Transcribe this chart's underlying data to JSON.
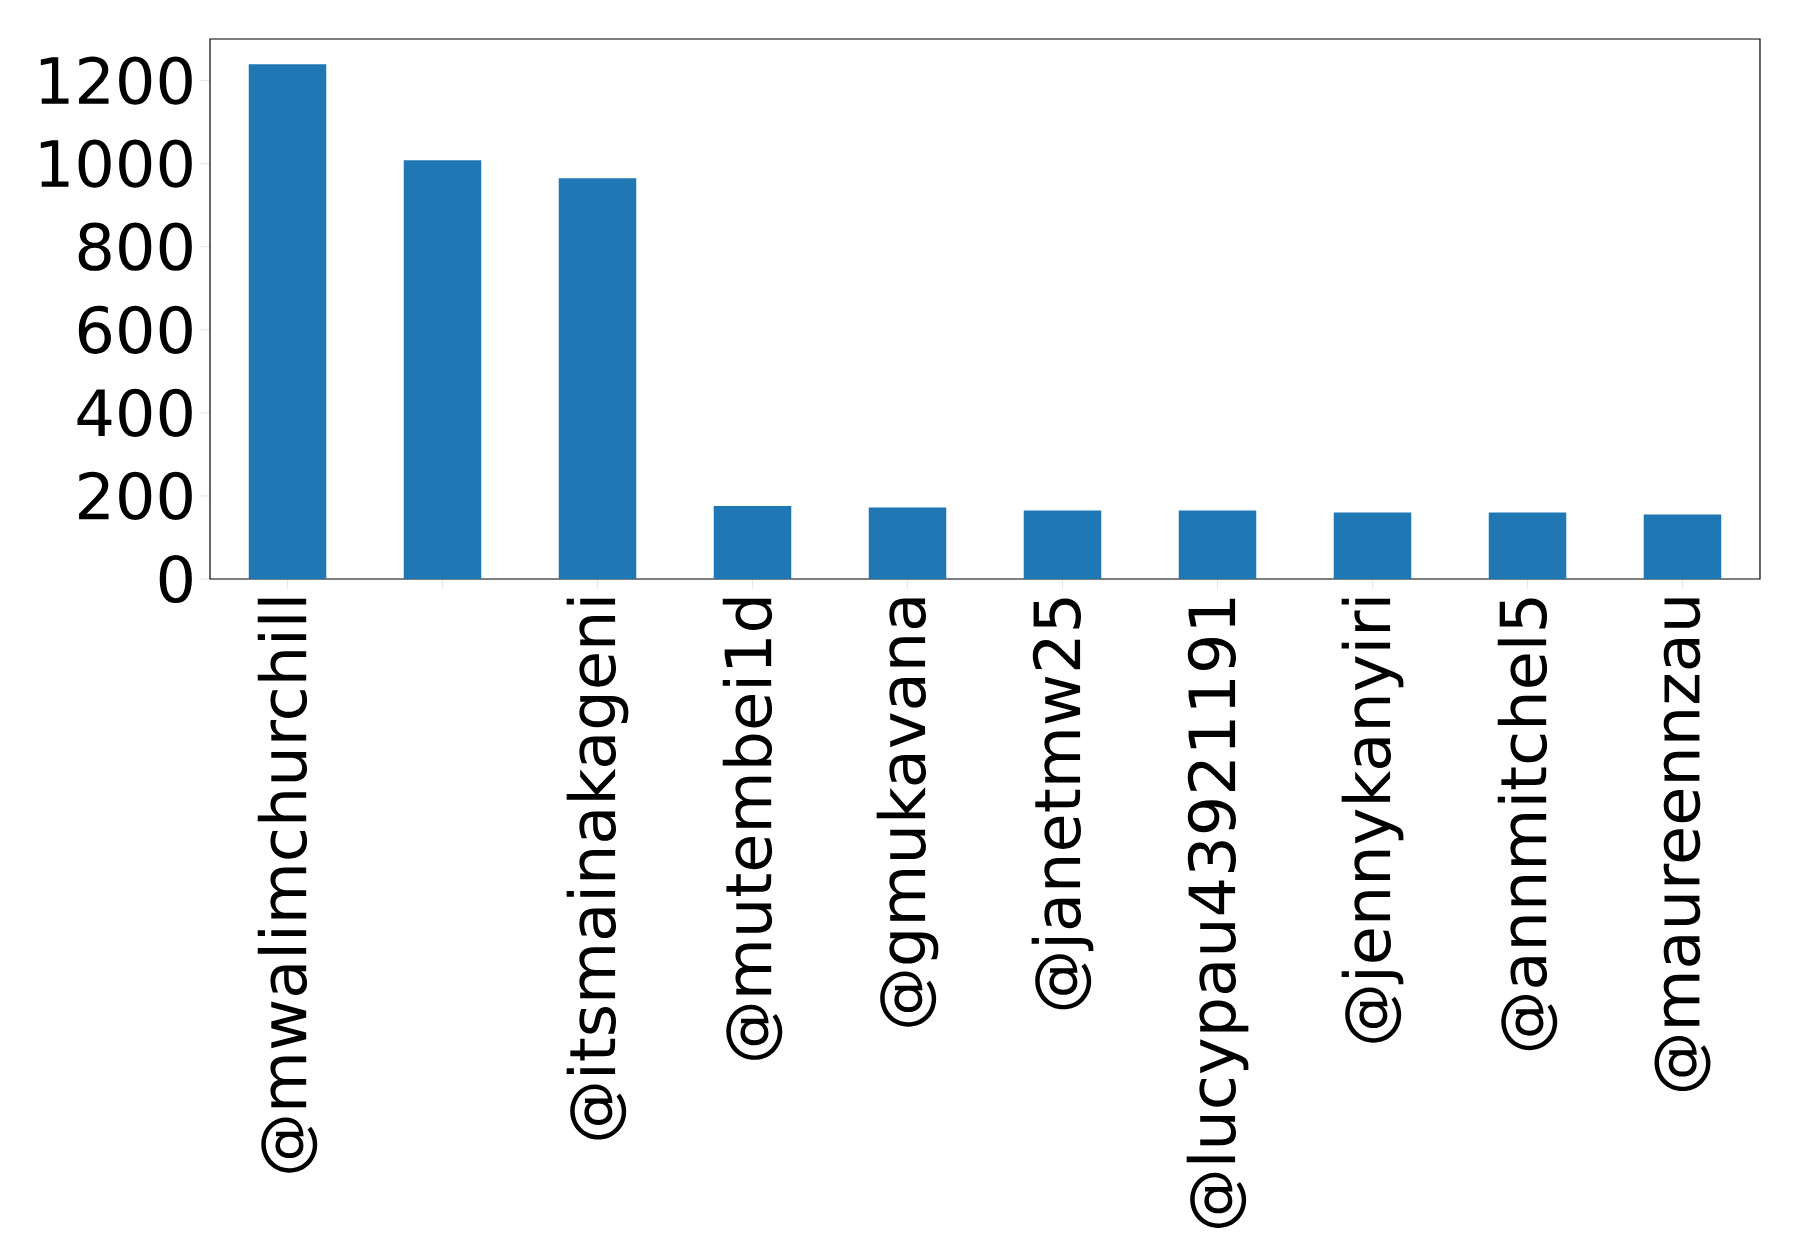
{
  "chart_data": {
    "type": "bar",
    "categories": [
      "@mwalimchurchill",
      null,
      "@itsmainakageni",
      "@mutembei1d",
      "@gmukavana",
      "@janetmw25",
      "@lucypau43921191",
      "@jennykanyiri",
      "@annmitchel5",
      "@maureennzau"
    ],
    "values": [
      1239,
      1008,
      965,
      176,
      172,
      165,
      165,
      160,
      160,
      155
    ],
    "color": "#1f77b4",
    "ylim": [
      0,
      1300
    ],
    "yticks": [
      0,
      200,
      400,
      600,
      800,
      1000,
      1200
    ]
  }
}
